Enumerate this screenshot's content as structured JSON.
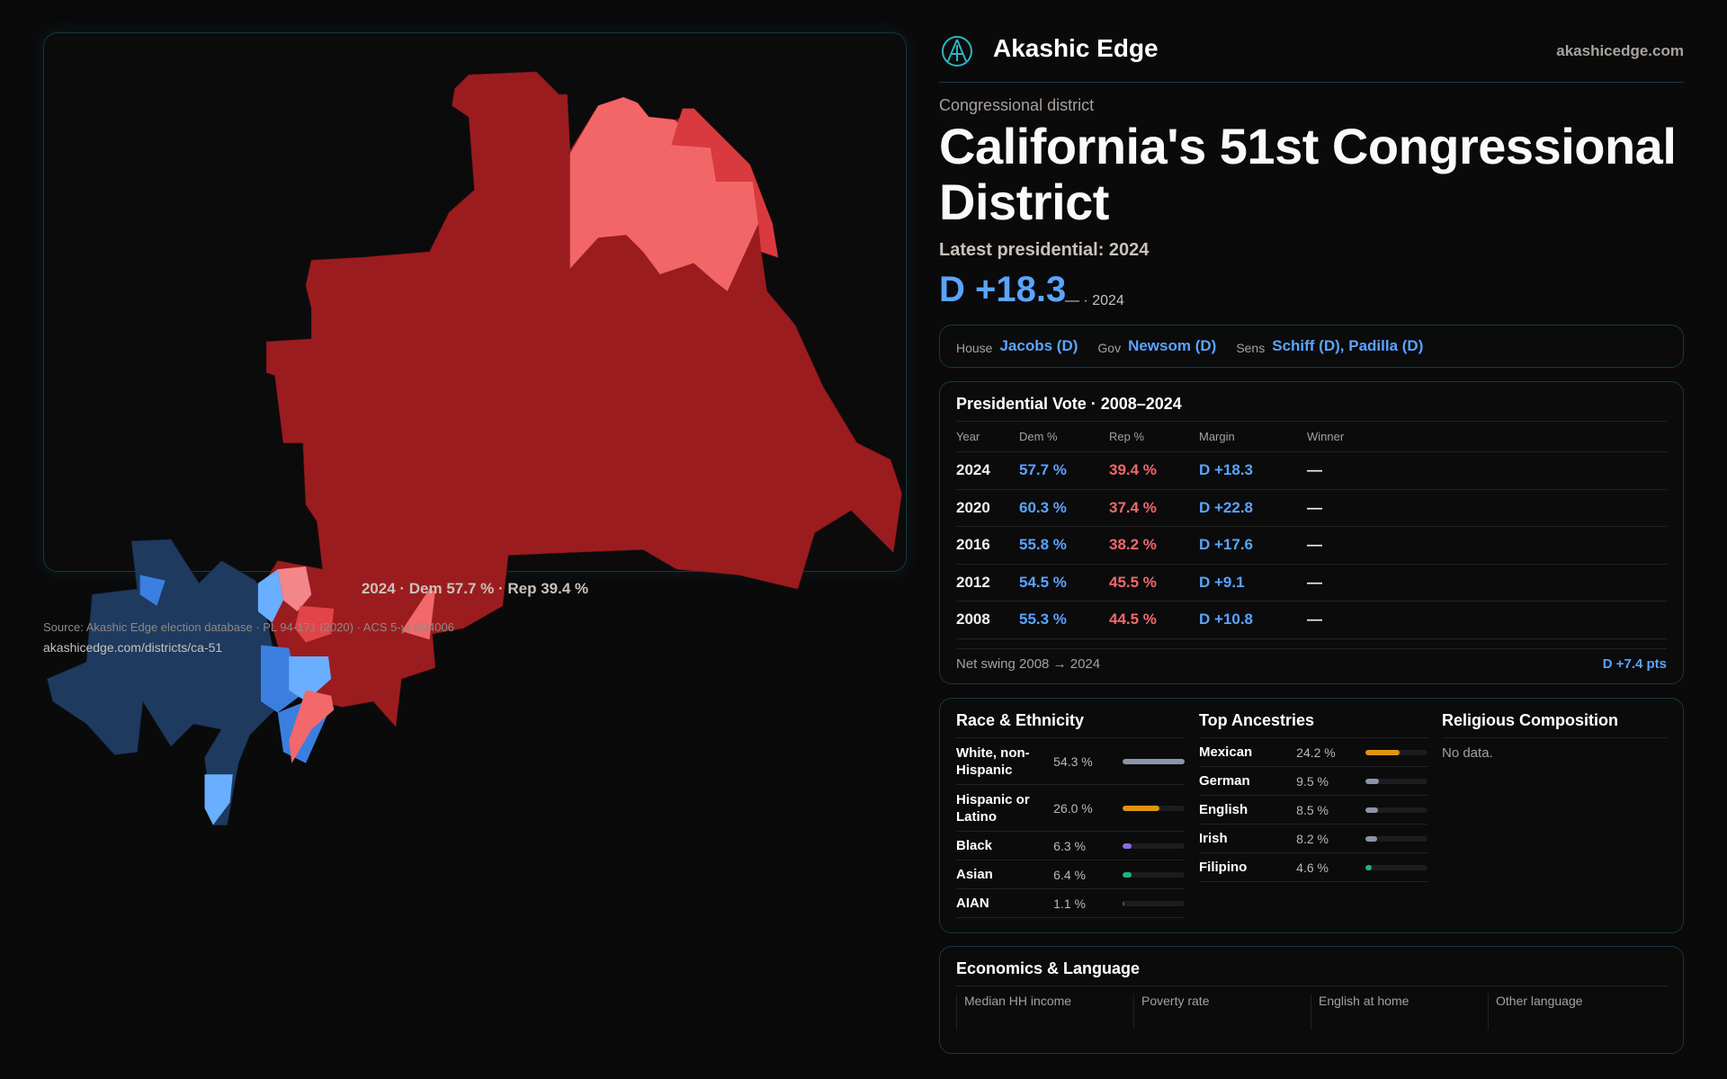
{
  "header": {
    "brand": "Akashic Edge",
    "site": "akashicedge.com",
    "logo_icon": "akashic-logo-icon"
  },
  "page": {
    "kicker": "Congressional district",
    "title": "California's 51st Congressional District",
    "latest": "Latest presidential: 2024",
    "margin": "D +18.3",
    "margin_sub": "— · 2024"
  },
  "reps": [
    {
      "k": "House",
      "v": "Jacobs (D)"
    },
    {
      "k": "Gov",
      "v": "Newsom (D)"
    },
    {
      "k": "Sens",
      "v": "Schiff (D), Padilla (D)"
    }
  ],
  "map": {
    "caption": "2024 · Dem 57.7 % · Rep 39.4 %",
    "colors": {
      "strong_rep": "#9b1c1f",
      "lean_rep": "#f2686b",
      "mid_rep": "#d93a3d",
      "strong_dem": "#1e3a5f",
      "lean_dem": "#6aaeff",
      "mid_dem": "#3a7fe0"
    }
  },
  "presidential": {
    "title": "Presidential Vote · 2008–2024",
    "headers": [
      "Year",
      "Dem %",
      "Rep %",
      "Margin",
      "Winner"
    ],
    "rows": [
      [
        "2024",
        "57.7 %",
        "39.4 %",
        "D +18.3",
        "—"
      ],
      [
        "2020",
        "60.3 %",
        "37.4 %",
        "D +22.8",
        "—"
      ],
      [
        "2016",
        "55.8 %",
        "38.2 %",
        "D +17.6",
        "—"
      ],
      [
        "2012",
        "54.5 %",
        "45.5 %",
        "D +9.1",
        "—"
      ],
      [
        "2008",
        "55.3 %",
        "44.5 %",
        "D +10.8",
        "—"
      ]
    ],
    "swing_label": "Net swing 2008 → 2024",
    "swing_value": "D +7.4 pts"
  },
  "race": {
    "title": "Race & Ethnicity",
    "rows": [
      {
        "label": "White, non-Hispanic",
        "pct": "54.3 %",
        "value": 54.3,
        "color": "#8b94a8"
      },
      {
        "label": "Hispanic or Latino",
        "pct": "26.0 %",
        "value": 26.0,
        "color": "#e0950f"
      },
      {
        "label": "Black",
        "pct": "6.3 %",
        "value": 6.3,
        "color": "#8a6be0"
      },
      {
        "label": "Asian",
        "pct": "6.4 %",
        "value": 6.4,
        "color": "#1fb37a"
      },
      {
        "label": "AIAN",
        "pct": "1.1 %",
        "value": 1.1,
        "color": "#555"
      }
    ]
  },
  "ancestry": {
    "title": "Top Ancestries",
    "rows": [
      {
        "label": "Mexican",
        "pct": "24.2 %",
        "value": 24.2,
        "color": "#e0950f"
      },
      {
        "label": "German",
        "pct": "9.5 %",
        "value": 9.5,
        "color": "#8b94a8"
      },
      {
        "label": "English",
        "pct": "8.5 %",
        "value": 8.5,
        "color": "#8b94a8"
      },
      {
        "label": "Irish",
        "pct": "8.2 %",
        "value": 8.2,
        "color": "#8b94a8"
      },
      {
        "label": "Filipino",
        "pct": "4.6 %",
        "value": 4.6,
        "color": "#1fb37a"
      }
    ]
  },
  "religion": {
    "title": "Religious Composition",
    "empty": "No data."
  },
  "econ": {
    "title": "Economics & Language",
    "stats": [
      "Median HH income",
      "Poverty rate",
      "English at home",
      "Other language"
    ]
  },
  "source": {
    "text": "Source: Akashic Edge election database · PL 94-171 (2020) · ACS 5-yr B04006",
    "url": "akashicedge.com/districts/ca-51"
  }
}
